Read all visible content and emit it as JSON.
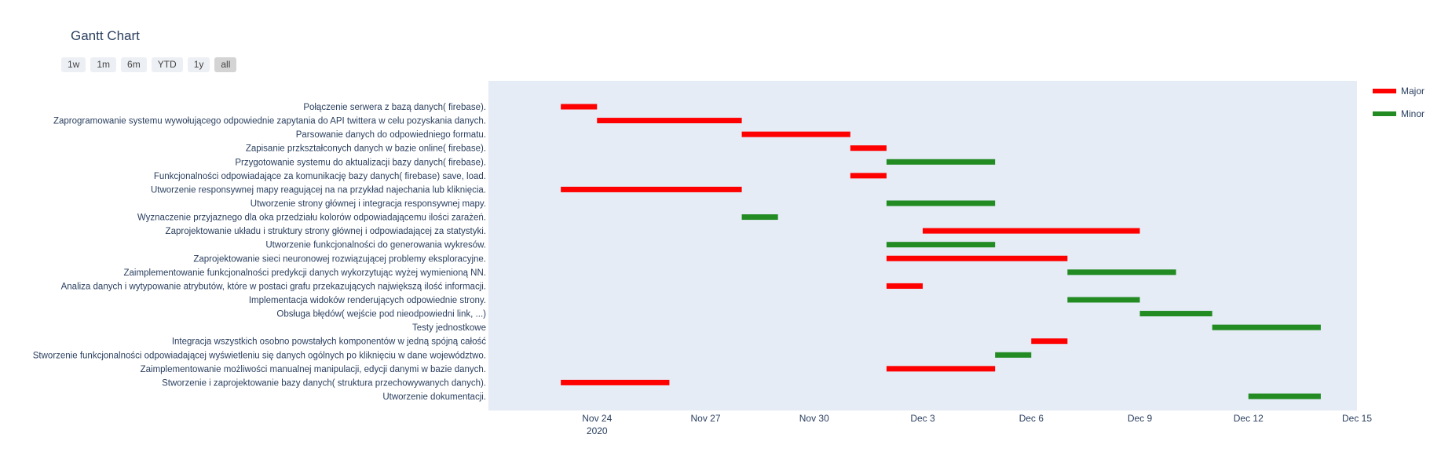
{
  "chart_data": {
    "type": "gantt",
    "title": "Gantt Chart",
    "range_buttons": [
      "1w",
      "1m",
      "6m",
      "YTD",
      "1y",
      "all"
    ],
    "active_range": "all",
    "x_range": [
      "2020-11-21",
      "2020-12-15"
    ],
    "x_ticks": [
      {
        "date": "2020-11-24",
        "label": "Nov 24",
        "sublabel": "2020"
      },
      {
        "date": "2020-11-27",
        "label": "Nov 27"
      },
      {
        "date": "2020-11-30",
        "label": "Nov 30"
      },
      {
        "date": "2020-12-03",
        "label": "Dec 3"
      },
      {
        "date": "2020-12-06",
        "label": "Dec 6"
      },
      {
        "date": "2020-12-09",
        "label": "Dec 9"
      },
      {
        "date": "2020-12-12",
        "label": "Dec 12"
      },
      {
        "date": "2020-12-15",
        "label": "Dec 15"
      }
    ],
    "legend": [
      {
        "name": "Major",
        "color": "#ff0000"
      },
      {
        "name": "Minor",
        "color": "#228b22"
      }
    ],
    "legend_position": "top-right",
    "colors": {
      "Major": "#ff0000",
      "Minor": "#228b22",
      "plot_bg": "#e5ecf6",
      "text": "#2a3f5f"
    },
    "tasks": [
      {
        "name": "Połączenie serwera z bazą danych( firebase).",
        "start": "2020-11-23",
        "end": "2020-11-24",
        "category": "Major"
      },
      {
        "name": "Zaprogramowanie systemu wywołującego odpowiednie zapytania do API twittera w celu pozyskania danych.",
        "start": "2020-11-24",
        "end": "2020-11-28",
        "category": "Major"
      },
      {
        "name": "Parsowanie danych do odpowiedniego formatu.",
        "start": "2020-11-28",
        "end": "2020-12-01",
        "category": "Major"
      },
      {
        "name": "Zapisanie przkształconych danych w bazie online( firebase).",
        "start": "2020-12-01",
        "end": "2020-12-02",
        "category": "Major"
      },
      {
        "name": "Przygotowanie systemu do aktualizacji bazy danych( firebase).",
        "start": "2020-12-02",
        "end": "2020-12-05",
        "category": "Minor"
      },
      {
        "name": "Funkcjonalności odpowiadające za komunikację bazy danych( firebase) save, load.",
        "start": "2020-12-01",
        "end": "2020-12-02",
        "category": "Major"
      },
      {
        "name": "Utworzenie responsywnej mapy reagującej na na przykład najechania lub kliknięcia.",
        "start": "2020-11-23",
        "end": "2020-11-28",
        "category": "Major"
      },
      {
        "name": "Utworzenie strony głównej i integracja  responsywnej mapy.",
        "start": "2020-12-02",
        "end": "2020-12-05",
        "category": "Minor"
      },
      {
        "name": "Wyznaczenie przyjaznego dla oka przedziału kolorów odpowiadającemu ilości zarażeń.",
        "start": "2020-11-28",
        "end": "2020-11-29",
        "category": "Minor"
      },
      {
        "name": "Zaprojektowanie układu i struktury strony głównej i odpowiadającej za statystyki.",
        "start": "2020-12-03",
        "end": "2020-12-09",
        "category": "Major"
      },
      {
        "name": "Utworzenie funkcjonalności do generowania wykresów.",
        "start": "2020-12-02",
        "end": "2020-12-05",
        "category": "Minor"
      },
      {
        "name": "Zaprojektowanie sieci neuronowej rozwiązującej problemy eksploracyjne.",
        "start": "2020-12-02",
        "end": "2020-12-07",
        "category": "Major"
      },
      {
        "name": "Zaimplementowanie funkcjonalności predykcji danych wykorzytując wyżej wymienioną NN.",
        "start": "2020-12-07",
        "end": "2020-12-10",
        "category": "Minor"
      },
      {
        "name": "Analiza danych i wytypowanie atrybutów, które w postaci grafu przekazujących największą ilość informacji.",
        "start": "2020-12-02",
        "end": "2020-12-03",
        "category": "Major"
      },
      {
        "name": "Implementacja widoków renderujących odpowiednie strony.",
        "start": "2020-12-07",
        "end": "2020-12-09",
        "category": "Minor"
      },
      {
        "name": "Obsługa błędów( wejście pod nieodpowiedni link, ...)",
        "start": "2020-12-09",
        "end": "2020-12-11",
        "category": "Minor"
      },
      {
        "name": "Testy jednostkowe",
        "start": "2020-12-11",
        "end": "2020-12-14",
        "category": "Minor"
      },
      {
        "name": "Integracja wszystkich osobno powstałych komponentów w jedną spójną całość",
        "start": "2020-12-06",
        "end": "2020-12-07",
        "category": "Major"
      },
      {
        "name": "Stworzenie funkcjonalności odpowiadającej wyświetleniu się danych ogólnych po kliknięciu w dane województwo.",
        "start": "2020-12-05",
        "end": "2020-12-06",
        "category": "Minor"
      },
      {
        "name": "Zaimplementowanie możliwości manualnej manipulacji, edycji danymi w bazie danych.",
        "start": "2020-12-02",
        "end": "2020-12-05",
        "category": "Major"
      },
      {
        "name": "Stworzenie i zaprojektowanie bazy danych( struktura przechowywanych danych).",
        "start": "2020-11-23",
        "end": "2020-11-26",
        "category": "Major"
      },
      {
        "name": "Utworzenie dokumentacji.",
        "start": "2020-12-12",
        "end": "2020-12-14",
        "category": "Minor"
      }
    ]
  }
}
